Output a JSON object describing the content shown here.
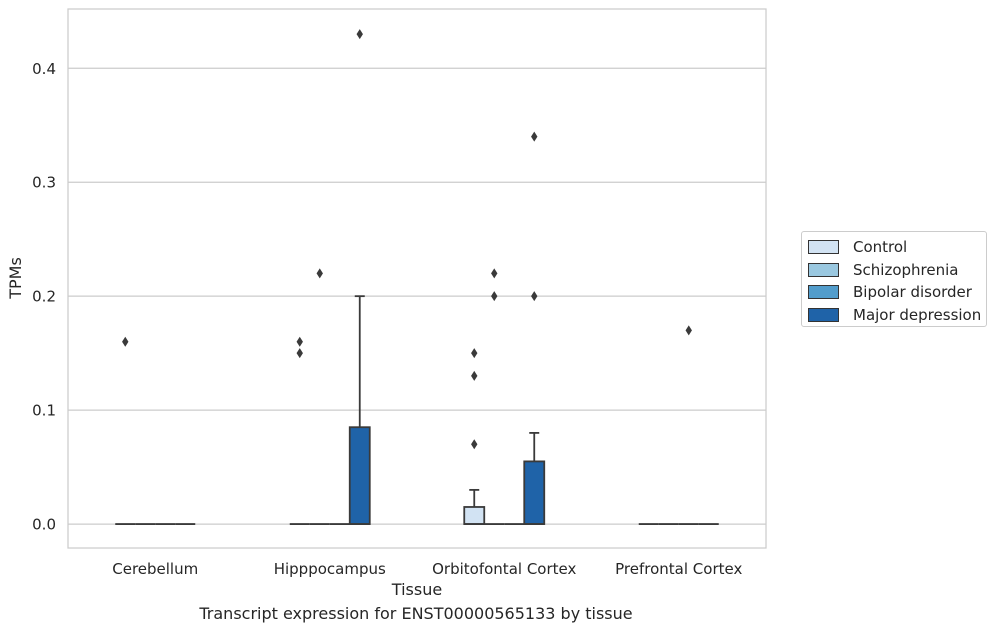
{
  "caption": "Transcript expression for ENST00000565133 by tissue",
  "legend": {
    "items": [
      {
        "label": "Control",
        "color": "#d2e3f3"
      },
      {
        "label": "Schizophrenia",
        "color": "#9ac8e0"
      },
      {
        "label": "Bipolar disorder",
        "color": "#529dcc"
      },
      {
        "label": "Major depression",
        "color": "#1f63a8"
      }
    ],
    "placement": "outside-right"
  },
  "chart_data": {
    "type": "box",
    "title": "",
    "xlabel": "Tissue",
    "ylabel": "TPMs",
    "ylim": [
      -0.021,
      0.452
    ],
    "yticks": [
      0.0,
      0.1,
      0.2,
      0.3,
      0.4
    ],
    "ytick_labels": [
      "0.0",
      "0.1",
      "0.2",
      "0.3",
      "0.4"
    ],
    "grid": "horizontal",
    "categories": [
      "Cerebellum",
      "Hipppocampus",
      "Orbitofontal Cortex",
      "Prefrontal Cortex"
    ],
    "series": [
      {
        "name": "Control",
        "color": "#d2e3f3",
        "boxes": [
          {
            "q1": 0,
            "median": 0,
            "q3": 0,
            "whisker_low": 0,
            "whisker_high": 0,
            "outliers": [
              0.16
            ]
          },
          {
            "q1": 0,
            "median": 0,
            "q3": 0,
            "whisker_low": 0,
            "whisker_high": 0,
            "outliers": [
              0.15,
              0.16
            ]
          },
          {
            "q1": 0,
            "median": 0,
            "q3": 0.015,
            "whisker_low": 0,
            "whisker_high": 0.03,
            "outliers": [
              0.07,
              0.13,
              0.15
            ]
          },
          {
            "q1": 0,
            "median": 0,
            "q3": 0,
            "whisker_low": 0,
            "whisker_high": 0,
            "outliers": []
          }
        ]
      },
      {
        "name": "Schizophrenia",
        "color": "#9ac8e0",
        "boxes": [
          {
            "q1": 0,
            "median": 0,
            "q3": 0,
            "whisker_low": 0,
            "whisker_high": 0,
            "outliers": []
          },
          {
            "q1": 0,
            "median": 0,
            "q3": 0,
            "whisker_low": 0,
            "whisker_high": 0,
            "outliers": [
              0.22
            ]
          },
          {
            "q1": 0,
            "median": 0,
            "q3": 0,
            "whisker_low": 0,
            "whisker_high": 0,
            "outliers": [
              0.2,
              0.22
            ]
          },
          {
            "q1": 0,
            "median": 0,
            "q3": 0,
            "whisker_low": 0,
            "whisker_high": 0,
            "outliers": []
          }
        ]
      },
      {
        "name": "Bipolar disorder",
        "color": "#529dcc",
        "boxes": [
          {
            "q1": 0,
            "median": 0,
            "q3": 0,
            "whisker_low": 0,
            "whisker_high": 0,
            "outliers": []
          },
          {
            "q1": 0,
            "median": 0,
            "q3": 0,
            "whisker_low": 0,
            "whisker_high": 0,
            "outliers": []
          },
          {
            "q1": 0,
            "median": 0,
            "q3": 0,
            "whisker_low": 0,
            "whisker_high": 0,
            "outliers": []
          },
          {
            "q1": 0,
            "median": 0,
            "q3": 0,
            "whisker_low": 0,
            "whisker_high": 0,
            "outliers": [
              0.17
            ]
          }
        ]
      },
      {
        "name": "Major depression",
        "color": "#1f63a8",
        "boxes": [
          {
            "q1": 0,
            "median": 0,
            "q3": 0,
            "whisker_low": 0,
            "whisker_high": 0,
            "outliers": []
          },
          {
            "q1": 0,
            "median": 0,
            "q3": 0.085,
            "whisker_low": 0,
            "whisker_high": 0.2,
            "outliers": [
              0.43
            ]
          },
          {
            "q1": 0,
            "median": 0,
            "q3": 0.055,
            "whisker_low": 0,
            "whisker_high": 0.08,
            "outliers": [
              0.2,
              0.34
            ]
          },
          {
            "q1": 0,
            "median": 0,
            "q3": 0,
            "whisker_low": 0,
            "whisker_high": 0,
            "outliers": []
          }
        ]
      }
    ]
  }
}
